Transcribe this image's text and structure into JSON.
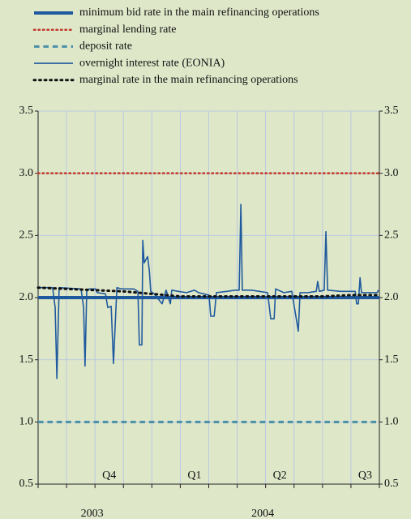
{
  "chart_data": {
    "type": "line",
    "xlim": [
      0,
      12
    ],
    "xticks": [
      0,
      1,
      2,
      3,
      4,
      5,
      6,
      7,
      8,
      9,
      10,
      11,
      12
    ],
    "x_labels": [
      {
        "value": 2.5,
        "label": "Q4"
      },
      {
        "value": 5.5,
        "label": "Q1"
      },
      {
        "value": 8.5,
        "label": "Q2"
      },
      {
        "value": 11.5,
        "label": "Q3"
      }
    ],
    "x_year_labels": [
      {
        "value": 1.9,
        "label": "2003"
      },
      {
        "value": 7.9,
        "label": "2004"
      }
    ],
    "ylim": [
      0.5,
      3.5
    ],
    "yticks": [
      0.5,
      {
        "value": 1,
        "label": "1.0"
      },
      1.5,
      {
        "value": 2,
        "label": "2.0"
      },
      2.5,
      {
        "value": 3,
        "label": "3.0"
      },
      3.5
    ],
    "grid": true,
    "series": [
      {
        "name": "minimum bid rate in the main refinancing operations",
        "color": "#1f5a9e",
        "dash": "solid",
        "width": 4,
        "x": [
          0,
          12
        ],
        "values": [
          2,
          2
        ]
      },
      {
        "name": "marginal lending rate",
        "color": "#c0392b",
        "dash": "dotted",
        "width": 2.5,
        "x": [
          0,
          12
        ],
        "values": [
          3,
          3
        ]
      },
      {
        "name": "deposit rate",
        "color": "#4a8fa8",
        "dash": "dashed",
        "width": 3,
        "x": [
          0,
          12
        ],
        "values": [
          1,
          1
        ]
      },
      {
        "name": "overnight interest rate (EONIA)",
        "color": "#1f5a9e",
        "dash": "solid",
        "width": 1.6,
        "x": [
          0,
          0.51,
          0.6,
          0.66,
          0.74,
          1.51,
          1.6,
          1.65,
          1.71,
          1.8,
          2.02,
          2.08,
          2.37,
          2.45,
          2.57,
          2.65,
          2.77,
          2.94,
          3.36,
          3.51,
          3.56,
          3.65,
          3.68,
          3.73,
          3.85,
          3.91,
          3.96,
          4.08,
          4.36,
          4.5,
          4.65,
          4.7,
          4.93,
          5.22,
          5.5,
          5.64,
          6.01,
          6.07,
          6.19,
          6.27,
          6.64,
          6.93,
          7.07,
          7.13,
          7.18,
          7.5,
          7.78,
          8.07,
          8.18,
          8.3,
          8.35,
          8.64,
          8.92,
          9.15,
          9.21,
          9.49,
          9.78,
          9.83,
          9.89,
          10.06,
          10.12,
          10.18,
          10.63,
          11.15,
          11.2,
          11.26,
          11.32,
          11.37,
          11.92,
          11.97
        ],
        "values": [
          2.08,
          2.08,
          1.92,
          1.35,
          2.08,
          2.07,
          1.92,
          1.45,
          2.05,
          2.07,
          2.07,
          2.04,
          2.03,
          1.92,
          1.93,
          1.47,
          2.08,
          2.07,
          2.07,
          2.05,
          1.62,
          1.62,
          2.46,
          2.28,
          2.33,
          2.22,
          2.05,
          2.03,
          1.95,
          2.06,
          1.95,
          2.06,
          2.05,
          2.04,
          2.06,
          2.04,
          2.02,
          1.85,
          1.85,
          2.04,
          2.05,
          2.06,
          2.06,
          2.75,
          2.06,
          2.06,
          2.05,
          2.04,
          1.83,
          1.83,
          2.07,
          2.04,
          2.05,
          1.73,
          2.04,
          2.04,
          2.05,
          2.13,
          2.05,
          2.06,
          2.53,
          2.06,
          2.05,
          2.05,
          1.95,
          1.95,
          2.16,
          2.04,
          2.04,
          2.06
        ]
      },
      {
        "name": "marginal rate in the main refinancing operations",
        "color": "#111111",
        "dash": "dotted",
        "width": 3,
        "x": [
          0,
          1,
          2,
          3,
          4,
          5,
          6,
          7,
          8,
          9,
          10,
          11,
          12
        ],
        "values": [
          2.08,
          2.07,
          2.06,
          2.05,
          2.03,
          2.01,
          2.01,
          2.01,
          2.01,
          2.01,
          2.01,
          2.02,
          2.02
        ]
      }
    ]
  }
}
